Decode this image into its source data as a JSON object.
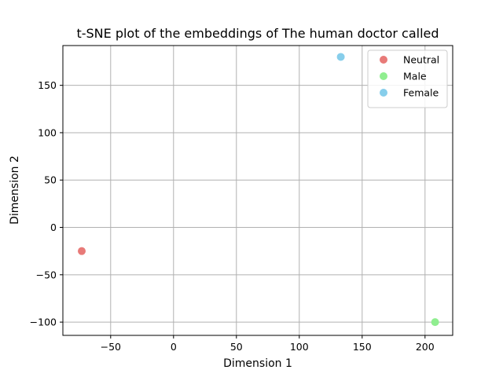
{
  "chart_data": {
    "type": "scatter",
    "title": "t-SNE plot of the embeddings of The human doctor called",
    "xlabel": "Dimension 1",
    "ylabel": "Dimension 2",
    "xlim": [
      -88,
      222
    ],
    "ylim": [
      -114,
      192
    ],
    "xticks": [
      -50,
      0,
      50,
      100,
      150,
      200
    ],
    "xtick_labels": [
      "−50",
      "0",
      "50",
      "100",
      "150",
      "200"
    ],
    "yticks": [
      -100,
      -50,
      0,
      50,
      100,
      150
    ],
    "ytick_labels": [
      "−100",
      "−50",
      "0",
      "50",
      "100",
      "150"
    ],
    "grid": true,
    "legend_position": "top-right",
    "series": [
      {
        "name": "Neutral",
        "color": "#e87a78",
        "points": [
          {
            "x": -73,
            "y": -25
          }
        ]
      },
      {
        "name": "Male",
        "color": "#90ee90",
        "points": [
          {
            "x": 208,
            "y": -100
          }
        ]
      },
      {
        "name": "Female",
        "color": "#87ceeb",
        "points": [
          {
            "x": 133,
            "y": 180
          }
        ]
      }
    ]
  }
}
